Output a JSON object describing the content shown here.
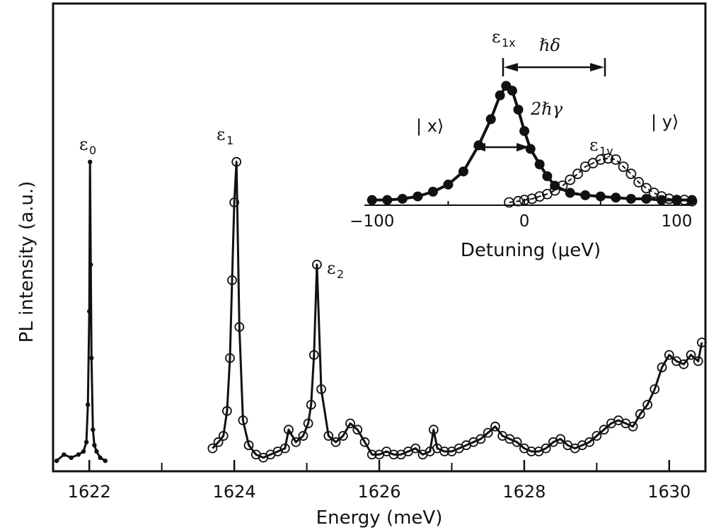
{
  "chart_data": [
    {
      "type": "line",
      "xlabel": "Energy (meV)",
      "ylabel": "PL intensity (a.u.)",
      "xlim": [
        1621.5,
        1630.5
      ],
      "xticks": [
        "1622",
        "1624",
        "1626",
        "1628",
        "1630"
      ],
      "xtick_values": [
        1622,
        1624,
        1626,
        1628,
        1630
      ],
      "ylim": [
        0,
        1.0
      ],
      "grid": false,
      "series": [
        {
          "marker": "filled-dot",
          "x": [
            1621.55,
            1621.65,
            1621.75,
            1621.85,
            1621.92,
            1621.96,
            1621.98,
            1622.0,
            1622.01,
            1622.02,
            1622.03,
            1622.05,
            1622.07,
            1622.1,
            1622.15,
            1622.22
          ],
          "y": [
            0.02,
            0.04,
            0.03,
            0.04,
            0.05,
            0.08,
            0.2,
            0.5,
            0.98,
            0.65,
            0.35,
            0.12,
            0.07,
            0.05,
            0.03,
            0.02
          ]
        },
        {
          "marker": "open-circle",
          "x": [
            1623.7,
            1623.78,
            1623.85,
            1623.9,
            1623.94,
            1623.97,
            1624.0,
            1624.03,
            1624.07,
            1624.12,
            1624.2,
            1624.3,
            1624.4,
            1624.5,
            1624.6,
            1624.7,
            1624.75,
            1624.85,
            1624.95,
            1625.02,
            1625.06,
            1625.1,
            1625.14,
            1625.2,
            1625.3,
            1625.4,
            1625.5,
            1625.6,
            1625.7,
            1625.8,
            1625.9,
            1626.0,
            1626.1,
            1626.2,
            1626.3,
            1626.4,
            1626.5,
            1626.6,
            1626.7,
            1626.75,
            1626.8,
            1626.9,
            1627.0,
            1627.1,
            1627.2,
            1627.3,
            1627.4,
            1627.5,
            1627.6,
            1627.7,
            1627.8,
            1627.9,
            1628.0,
            1628.1,
            1628.2,
            1628.3,
            1628.4,
            1628.5,
            1628.6,
            1628.7,
            1628.8,
            1628.9,
            1629.0,
            1629.1,
            1629.2,
            1629.3,
            1629.4,
            1629.5,
            1629.6,
            1629.7,
            1629.8,
            1629.9,
            1630.0,
            1630.1,
            1630.2,
            1630.3,
            1630.4,
            1630.45
          ],
          "y": [
            0.06,
            0.08,
            0.1,
            0.18,
            0.35,
            0.6,
            0.85,
            0.98,
            0.45,
            0.15,
            0.07,
            0.04,
            0.03,
            0.04,
            0.05,
            0.06,
            0.12,
            0.08,
            0.1,
            0.14,
            0.2,
            0.36,
            0.65,
            0.25,
            0.1,
            0.08,
            0.1,
            0.14,
            0.12,
            0.08,
            0.04,
            0.04,
            0.05,
            0.04,
            0.04,
            0.05,
            0.06,
            0.04,
            0.05,
            0.12,
            0.06,
            0.05,
            0.05,
            0.06,
            0.07,
            0.08,
            0.09,
            0.11,
            0.13,
            0.1,
            0.09,
            0.08,
            0.06,
            0.05,
            0.05,
            0.06,
            0.08,
            0.09,
            0.07,
            0.06,
            0.07,
            0.08,
            0.1,
            0.12,
            0.14,
            0.15,
            0.14,
            0.13,
            0.17,
            0.2,
            0.25,
            0.32,
            0.36,
            0.34,
            0.33,
            0.36,
            0.34,
            0.4
          ]
        }
      ],
      "annotations": [
        {
          "label": "ε",
          "sub": "0",
          "x": 1622.0
        },
        {
          "label": "ε",
          "sub": "1",
          "x": 1624.0
        },
        {
          "label": "ε",
          "sub": "2",
          "x": 1625.4
        }
      ]
    },
    {
      "type": "line",
      "xlabel": "Detuning (μeV)",
      "xlim": [
        -105,
        110
      ],
      "xticks": [
        "−100",
        "0",
        "100"
      ],
      "xtick_values": [
        -100,
        0,
        100
      ],
      "ylim": [
        0,
        1.0
      ],
      "grid": false,
      "series": [
        {
          "marker": "filled-dot",
          "x": [
            -100,
            -90,
            -80,
            -70,
            -60,
            -50,
            -40,
            -30,
            -22,
            -16,
            -12,
            -8,
            -4,
            0,
            4,
            10,
            15,
            20,
            30,
            40,
            50,
            60,
            70,
            80,
            90,
            100,
            110
          ],
          "y": [
            0.02,
            0.02,
            0.03,
            0.05,
            0.09,
            0.15,
            0.26,
            0.48,
            0.7,
            0.9,
            0.98,
            0.94,
            0.78,
            0.6,
            0.45,
            0.32,
            0.22,
            0.14,
            0.08,
            0.06,
            0.05,
            0.04,
            0.03,
            0.03,
            0.02,
            0.02,
            0.02
          ]
        },
        {
          "marker": "open-circle",
          "x": [
            -10,
            -4,
            0,
            5,
            10,
            15,
            20,
            25,
            30,
            35,
            40,
            45,
            50,
            55,
            60,
            65,
            70,
            75,
            80,
            85,
            90,
            95,
            100,
            105,
            110
          ],
          "y": [
            0.0,
            0.01,
            0.02,
            0.03,
            0.05,
            0.07,
            0.1,
            0.14,
            0.19,
            0.24,
            0.3,
            0.33,
            0.36,
            0.37,
            0.36,
            0.3,
            0.24,
            0.17,
            0.12,
            0.08,
            0.05,
            0.03,
            0.02,
            0.02,
            0.01
          ]
        }
      ],
      "annotations": [
        {
          "label": "ε",
          "sub": "1x"
        },
        {
          "label": "ε",
          "sub": "1y"
        },
        {
          "label": "ℏδ"
        },
        {
          "label": "2ℏγ"
        },
        {
          "label": "| x⟩"
        },
        {
          "label": "| y⟩"
        }
      ]
    }
  ]
}
